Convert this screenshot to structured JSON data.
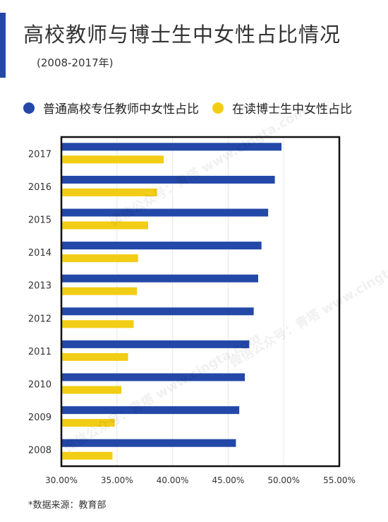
{
  "title": "高校教师与博士生中女性占比情况",
  "subtitle": "(2008-2017年)",
  "footnote": "*数据来源：教育部",
  "watermark": "微信公众号：青塔 www.cingta.com",
  "colors": {
    "series1": "#2348a8",
    "series2": "#f2cd15",
    "accent": "#2348a8"
  },
  "chart_data": {
    "type": "bar",
    "orientation": "horizontal",
    "categories": [
      "2017",
      "2016",
      "2015",
      "2014",
      "2013",
      "2012",
      "2011",
      "2010",
      "2009",
      "2008"
    ],
    "series": [
      {
        "name": "普通高校专任教师中女性占比",
        "values": [
          49.8,
          49.2,
          48.6,
          48.0,
          47.7,
          47.3,
          46.9,
          46.5,
          46.0,
          45.7
        ]
      },
      {
        "name": "在读博士生中女性占比",
        "values": [
          39.2,
          38.6,
          37.8,
          36.9,
          36.8,
          36.5,
          36.0,
          35.4,
          34.8,
          34.6
        ]
      }
    ],
    "x_ticks": [
      "30.00%",
      "35.00%",
      "40.00%",
      "45.00%",
      "50.00%",
      "55.00%"
    ],
    "xlim": [
      30,
      55
    ],
    "grid": true,
    "legend_position": "top"
  }
}
